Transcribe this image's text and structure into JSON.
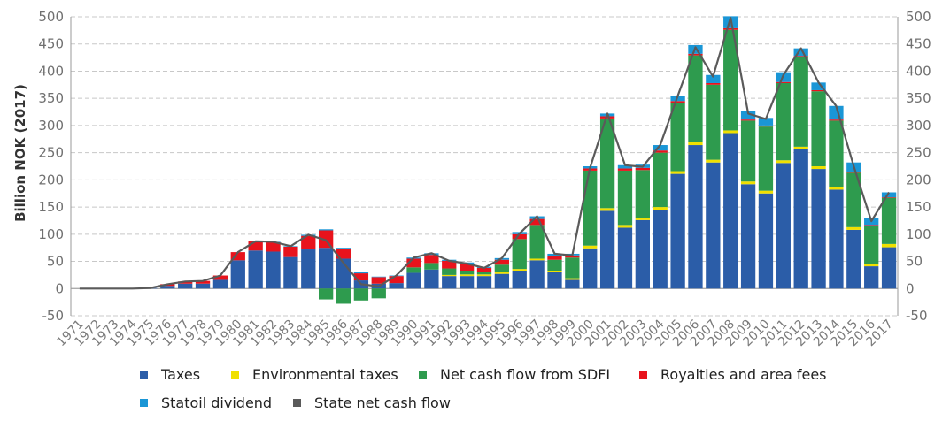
{
  "chart_data": {
    "type": "bar",
    "ylabel": "Billion NOK (2017)",
    "ylim": [
      -50,
      500
    ],
    "yticks": [
      -50,
      0,
      50,
      100,
      150,
      200,
      250,
      300,
      350,
      400,
      450,
      500
    ],
    "ytick_labels": [
      "-50",
      "0",
      "50",
      "100",
      "150",
      "200",
      "250",
      "300",
      "350",
      "400",
      "450",
      "500"
    ],
    "categories": [
      "1971",
      "1972",
      "1973",
      "1974",
      "1975",
      "1976",
      "1977",
      "1978",
      "1979",
      "1980",
      "1981",
      "1982",
      "1983",
      "1984",
      "1985",
      "1986",
      "1987",
      "1988",
      "1989",
      "1990",
      "1991",
      "1992",
      "1993",
      "1994",
      "1995",
      "1996",
      "1997",
      "1998",
      "1999",
      "2000",
      "2001",
      "2002",
      "2003",
      "2004",
      "2005",
      "2006",
      "2007",
      "2008",
      "2009",
      "2010",
      "2011",
      "2012",
      "2013",
      "2014",
      "2015",
      "2016",
      "2017"
    ],
    "grid": true,
    "legend_placement": "bottom",
    "series": [
      {
        "name": "Taxes",
        "color": "#2b5da8",
        "values": [
          0,
          0,
          0,
          0,
          1,
          5,
          9,
          9,
          16,
          52,
          70,
          68,
          58,
          72,
          75,
          55,
          15,
          9,
          10,
          29,
          35,
          23,
          23,
          23,
          27,
          33,
          52,
          30,
          16,
          74,
          143,
          112,
          126,
          145,
          211,
          264,
          232,
          286,
          192,
          175,
          231,
          256,
          220,
          182,
          108,
          41,
          76
        ]
      },
      {
        "name": "Environmental taxes",
        "color": "#f0e000",
        "values": [
          0,
          0,
          0,
          0,
          0,
          0,
          0,
          0,
          0,
          0,
          0,
          0,
          0,
          0,
          0,
          0,
          0,
          0,
          0,
          0,
          0,
          2,
          3,
          3,
          3,
          3,
          3,
          3,
          3,
          5,
          5,
          5,
          4,
          5,
          5,
          5,
          5,
          5,
          5,
          5,
          5,
          5,
          5,
          5,
          5,
          5,
          6
        ]
      },
      {
        "name": "Net cash flow from SDFI",
        "color": "#2e9b4e",
        "values": [
          0,
          0,
          0,
          0,
          0,
          0,
          0,
          0,
          0,
          0,
          0,
          0,
          0,
          0,
          -20,
          -28,
          -22,
          -18,
          0,
          10,
          12,
          12,
          7,
          4,
          14,
          55,
          62,
          20,
          38,
          138,
          165,
          100,
          88,
          100,
          125,
          160,
          138,
          185,
          112,
          118,
          142,
          165,
          138,
          122,
          100,
          70,
          85
        ]
      },
      {
        "name": "Royalties and area fees",
        "color": "#e8131c",
        "values": [
          0,
          0,
          0,
          0,
          0,
          3,
          4,
          5,
          8,
          15,
          17,
          17,
          19,
          25,
          32,
          18,
          13,
          12,
          13,
          16,
          15,
          14,
          13,
          8,
          9,
          9,
          11,
          6,
          4,
          4,
          4,
          4,
          4,
          4,
          4,
          3,
          3,
          3,
          2,
          2,
          2,
          2,
          2,
          2,
          2,
          1,
          1
        ]
      },
      {
        "name": "Statoil dividend",
        "color": "#1a96d6",
        "values": [
          0,
          0,
          0,
          0,
          0,
          0,
          0,
          0,
          0,
          0,
          1,
          1,
          1,
          2,
          2,
          2,
          2,
          1,
          1,
          2,
          3,
          2,
          2,
          2,
          3,
          4,
          5,
          5,
          3,
          4,
          5,
          6,
          6,
          10,
          10,
          16,
          15,
          22,
          16,
          14,
          18,
          14,
          14,
          25,
          17,
          12,
          9
        ]
      },
      {
        "name": "State net cash flow",
        "color": "#5a5a5a",
        "values": [
          0,
          0,
          0,
          0,
          1,
          8,
          13,
          14,
          24,
          67,
          87,
          86,
          78,
          99,
          89,
          47,
          8,
          4,
          24,
          57,
          65,
          51,
          46,
          38,
          56,
          101,
          133,
          64,
          61,
          221,
          322,
          227,
          224,
          264,
          355,
          444,
          390,
          498,
          322,
          312,
          393,
          442,
          379,
          336,
          225,
          124,
          177
        ]
      }
    ]
  }
}
